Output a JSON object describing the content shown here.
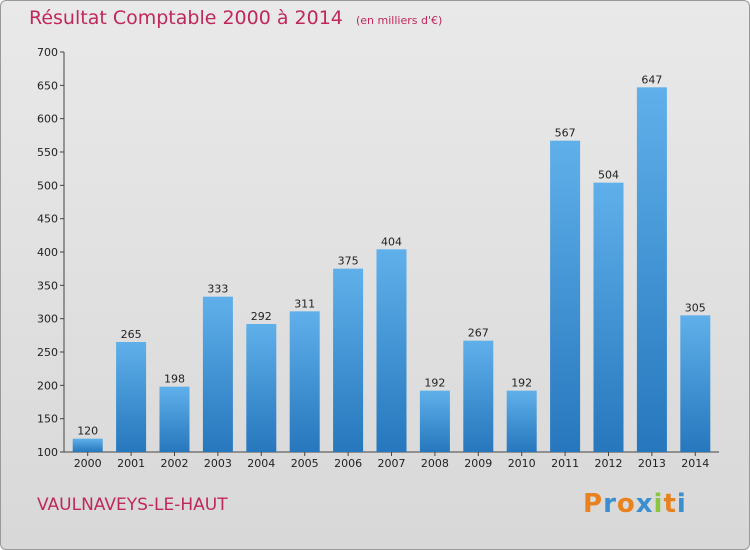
{
  "chart_data": {
    "type": "bar",
    "title": "Résultat Comptable 2000 à 2014",
    "subtitle": "(en milliers d'€)",
    "categories": [
      "2000",
      "2001",
      "2002",
      "2003",
      "2004",
      "2005",
      "2006",
      "2007",
      "2008",
      "2009",
      "2010",
      "2011",
      "2012",
      "2013",
      "2014"
    ],
    "values": [
      120,
      265,
      198,
      333,
      292,
      311,
      375,
      404,
      192,
      267,
      192,
      567,
      504,
      647,
      305
    ],
    "ylim": [
      100,
      700
    ],
    "yticks": [
      100,
      150,
      200,
      250,
      300,
      350,
      400,
      450,
      500,
      550,
      600,
      650,
      700
    ],
    "xlabel": "",
    "ylabel": "",
    "grid": false,
    "colors": {
      "bar_light": "#5fb0ea",
      "bar_dark": "#2677bd",
      "title": "#c0285a"
    }
  },
  "footer": {
    "place": "VAULNAVEYS-LE-HAUT",
    "logo_letters": [
      "P",
      "r",
      "o",
      "x",
      "i",
      "t",
      "i"
    ],
    "logo_colors": [
      "#e8821e",
      "#3a8fd0",
      "#e8821e",
      "#3a8fd0",
      "#8cc63f",
      "#e8821e",
      "#3a8fd0"
    ]
  }
}
